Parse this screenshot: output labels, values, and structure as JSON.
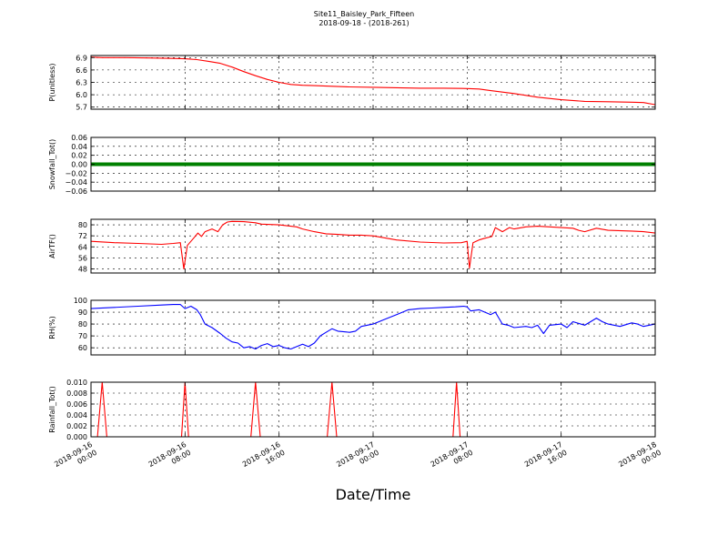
{
  "title": "Site11_Baisley_Park_Fifteen",
  "subtitle": "2018-09-18 - (2018-261)",
  "xlabel": "Date/Time",
  "chart_data": {
    "type": "line",
    "x_ticks": [
      "2018-09-16\n00:00",
      "2018-09-16\n08:00",
      "2018-09-16\n16:00",
      "2018-09-17\n00:00",
      "2018-09-17\n08:00",
      "2018-09-17\n16:00",
      "2018-09-18\n00:00"
    ],
    "x_range_hours": [
      0,
      48
    ],
    "grid": true,
    "panels": [
      {
        "ylabel": "P(unitless)",
        "ylim": [
          5.65,
          6.95
        ],
        "yticks": [
          5.7,
          6.0,
          6.3,
          6.6,
          6.9
        ],
        "ytick_labels": [
          "5.7",
          "6.0",
          "6.3",
          "6.6",
          "6.9"
        ],
        "color": "#ff0000",
        "series_type": "line",
        "points": [
          [
            0,
            6.91
          ],
          [
            1,
            6.9
          ],
          [
            3,
            6.9
          ],
          [
            5,
            6.89
          ],
          [
            7,
            6.88
          ],
          [
            8,
            6.87
          ],
          [
            9,
            6.85
          ],
          [
            10,
            6.81
          ],
          [
            11,
            6.76
          ],
          [
            12,
            6.67
          ],
          [
            13,
            6.56
          ],
          [
            14,
            6.46
          ],
          [
            15,
            6.37
          ],
          [
            16,
            6.3
          ],
          [
            17,
            6.25
          ],
          [
            18,
            6.23
          ],
          [
            19,
            6.22
          ],
          [
            20,
            6.21
          ],
          [
            22,
            6.19
          ],
          [
            24,
            6.18
          ],
          [
            26,
            6.17
          ],
          [
            28,
            6.16
          ],
          [
            30,
            6.16
          ],
          [
            32,
            6.15
          ],
          [
            33,
            6.14
          ],
          [
            34,
            6.1
          ],
          [
            36,
            6.03
          ],
          [
            38,
            5.94
          ],
          [
            40,
            5.88
          ],
          [
            42,
            5.84
          ],
          [
            44,
            5.83
          ],
          [
            46,
            5.82
          ],
          [
            47,
            5.81
          ],
          [
            48,
            5.76
          ]
        ]
      },
      {
        "ylabel": "Snowfall_Tot()",
        "ylim": [
          -0.06,
          0.06
        ],
        "yticks": [
          -0.06,
          -0.04,
          -0.02,
          0.0,
          0.02,
          0.04,
          0.06
        ],
        "ytick_labels": [
          "−0.06",
          "−0.04",
          "−0.02",
          "0.00",
          "0.02",
          "0.04",
          "0.06"
        ],
        "color": "#008000",
        "series_type": "dots",
        "points": [
          [
            0,
            0
          ],
          [
            48,
            0
          ]
        ]
      },
      {
        "ylabel": "AirTF()",
        "ylim": [
          45,
          84
        ],
        "yticks": [
          48,
          56,
          64,
          72,
          80
        ],
        "ytick_labels": [
          "48",
          "56",
          "64",
          "72",
          "80"
        ],
        "color": "#ff0000",
        "series_type": "line",
        "points": [
          [
            0,
            68
          ],
          [
            2,
            67
          ],
          [
            4,
            66.5
          ],
          [
            6,
            65.8
          ],
          [
            7,
            66.5
          ],
          [
            7.6,
            67
          ],
          [
            7.9,
            48
          ],
          [
            8.2,
            65
          ],
          [
            8.7,
            70
          ],
          [
            9.1,
            74
          ],
          [
            9.4,
            71.5
          ],
          [
            9.7,
            75
          ],
          [
            10.3,
            77
          ],
          [
            10.8,
            75
          ],
          [
            11.2,
            80
          ],
          [
            11.6,
            82
          ],
          [
            12,
            82.5
          ],
          [
            13,
            82.3
          ],
          [
            14,
            81.5
          ],
          [
            14.5,
            80.5
          ],
          [
            16,
            80
          ],
          [
            17,
            79
          ],
          [
            17.5,
            78.5
          ],
          [
            18,
            77
          ],
          [
            19,
            75
          ],
          [
            20,
            73.5
          ],
          [
            21,
            73
          ],
          [
            22,
            72.5
          ],
          [
            23,
            72.5
          ],
          [
            24,
            72
          ],
          [
            26,
            69
          ],
          [
            28,
            67.5
          ],
          [
            30,
            66.8
          ],
          [
            31.5,
            67
          ],
          [
            32,
            68
          ],
          [
            32.2,
            48.5
          ],
          [
            32.5,
            67
          ],
          [
            33,
            69
          ],
          [
            33.4,
            70
          ],
          [
            34.1,
            71.5
          ],
          [
            34.4,
            78
          ],
          [
            35,
            75
          ],
          [
            35.6,
            78
          ],
          [
            36,
            77
          ],
          [
            37,
            78.5
          ],
          [
            38,
            79
          ],
          [
            39,
            78.5
          ],
          [
            40,
            78
          ],
          [
            41,
            77.5
          ],
          [
            41.5,
            76
          ],
          [
            42,
            75
          ],
          [
            43,
            77.5
          ],
          [
            44,
            76
          ],
          [
            46,
            75.5
          ],
          [
            47,
            75
          ],
          [
            48,
            74
          ]
        ]
      },
      {
        "ylabel": "RH(%)",
        "ylim": [
          54,
          100
        ],
        "yticks": [
          60,
          70,
          80,
          90,
          100
        ],
        "ytick_labels": [
          "60",
          "70",
          "80",
          "90",
          "100"
        ],
        "color": "#0000ff",
        "series_type": "line",
        "points": [
          [
            0,
            93
          ],
          [
            2,
            94
          ],
          [
            4,
            95
          ],
          [
            6,
            96
          ],
          [
            7,
            96.5
          ],
          [
            7.6,
            96.5
          ],
          [
            8,
            93
          ],
          [
            8.5,
            95
          ],
          [
            9,
            92
          ],
          [
            9.3,
            88
          ],
          [
            9.7,
            80
          ],
          [
            10.3,
            77
          ],
          [
            11,
            72
          ],
          [
            11.5,
            68
          ],
          [
            12,
            65
          ],
          [
            12.5,
            64
          ],
          [
            13,
            60
          ],
          [
            13.5,
            61
          ],
          [
            14,
            59
          ],
          [
            14.5,
            62
          ],
          [
            15,
            63.5
          ],
          [
            15.5,
            61
          ],
          [
            16,
            62
          ],
          [
            16.5,
            60
          ],
          [
            17,
            59
          ],
          [
            17.5,
            61
          ],
          [
            18,
            63
          ],
          [
            18.5,
            61
          ],
          [
            19,
            64
          ],
          [
            19.5,
            70
          ],
          [
            20,
            73
          ],
          [
            20.5,
            76
          ],
          [
            21,
            74
          ],
          [
            22,
            73
          ],
          [
            22.5,
            74
          ],
          [
            23,
            78
          ],
          [
            24,
            80
          ],
          [
            25,
            84
          ],
          [
            26,
            88
          ],
          [
            27,
            92
          ],
          [
            28,
            93
          ],
          [
            29,
            93.5
          ],
          [
            30,
            94
          ],
          [
            31,
            94.5
          ],
          [
            31.7,
            95
          ],
          [
            32,
            94.5
          ],
          [
            32.3,
            91
          ],
          [
            33,
            92
          ],
          [
            33.5,
            90
          ],
          [
            34,
            88
          ],
          [
            34.4,
            90
          ],
          [
            35,
            80
          ],
          [
            35.5,
            79
          ],
          [
            36,
            77
          ],
          [
            37,
            78
          ],
          [
            37.5,
            77
          ],
          [
            38,
            79
          ],
          [
            38.5,
            72
          ],
          [
            39,
            79
          ],
          [
            40,
            80
          ],
          [
            40.5,
            77
          ],
          [
            41,
            82
          ],
          [
            42,
            79
          ],
          [
            42.5,
            82
          ],
          [
            43,
            85
          ],
          [
            43.5,
            82
          ],
          [
            44,
            80
          ],
          [
            45,
            78
          ],
          [
            46,
            81
          ],
          [
            46.5,
            80
          ],
          [
            47,
            78
          ],
          [
            48,
            80
          ]
        ]
      },
      {
        "ylabel": "Rainfall_Tot()",
        "ylim": [
          0,
          0.01
        ],
        "yticks": [
          0.0,
          0.002,
          0.004,
          0.006,
          0.008,
          0.01
        ],
        "ytick_labels": [
          "0.000",
          "0.002",
          "0.004",
          "0.006",
          "0.008",
          "0.010"
        ],
        "color": "#ff0000",
        "series_type": "line",
        "points": [
          [
            0,
            0
          ],
          [
            0.55,
            0
          ],
          [
            0.95,
            0.01
          ],
          [
            1.35,
            0
          ],
          [
            7.7,
            0
          ],
          [
            8,
            0.01
          ],
          [
            8.3,
            0
          ],
          [
            13.6,
            0
          ],
          [
            14,
            0.01
          ],
          [
            14.4,
            0
          ],
          [
            20.1,
            0
          ],
          [
            20.5,
            0.01
          ],
          [
            20.9,
            0
          ],
          [
            30.8,
            0
          ],
          [
            31.1,
            0.01
          ],
          [
            31.4,
            0
          ],
          [
            48,
            0
          ]
        ]
      }
    ]
  }
}
